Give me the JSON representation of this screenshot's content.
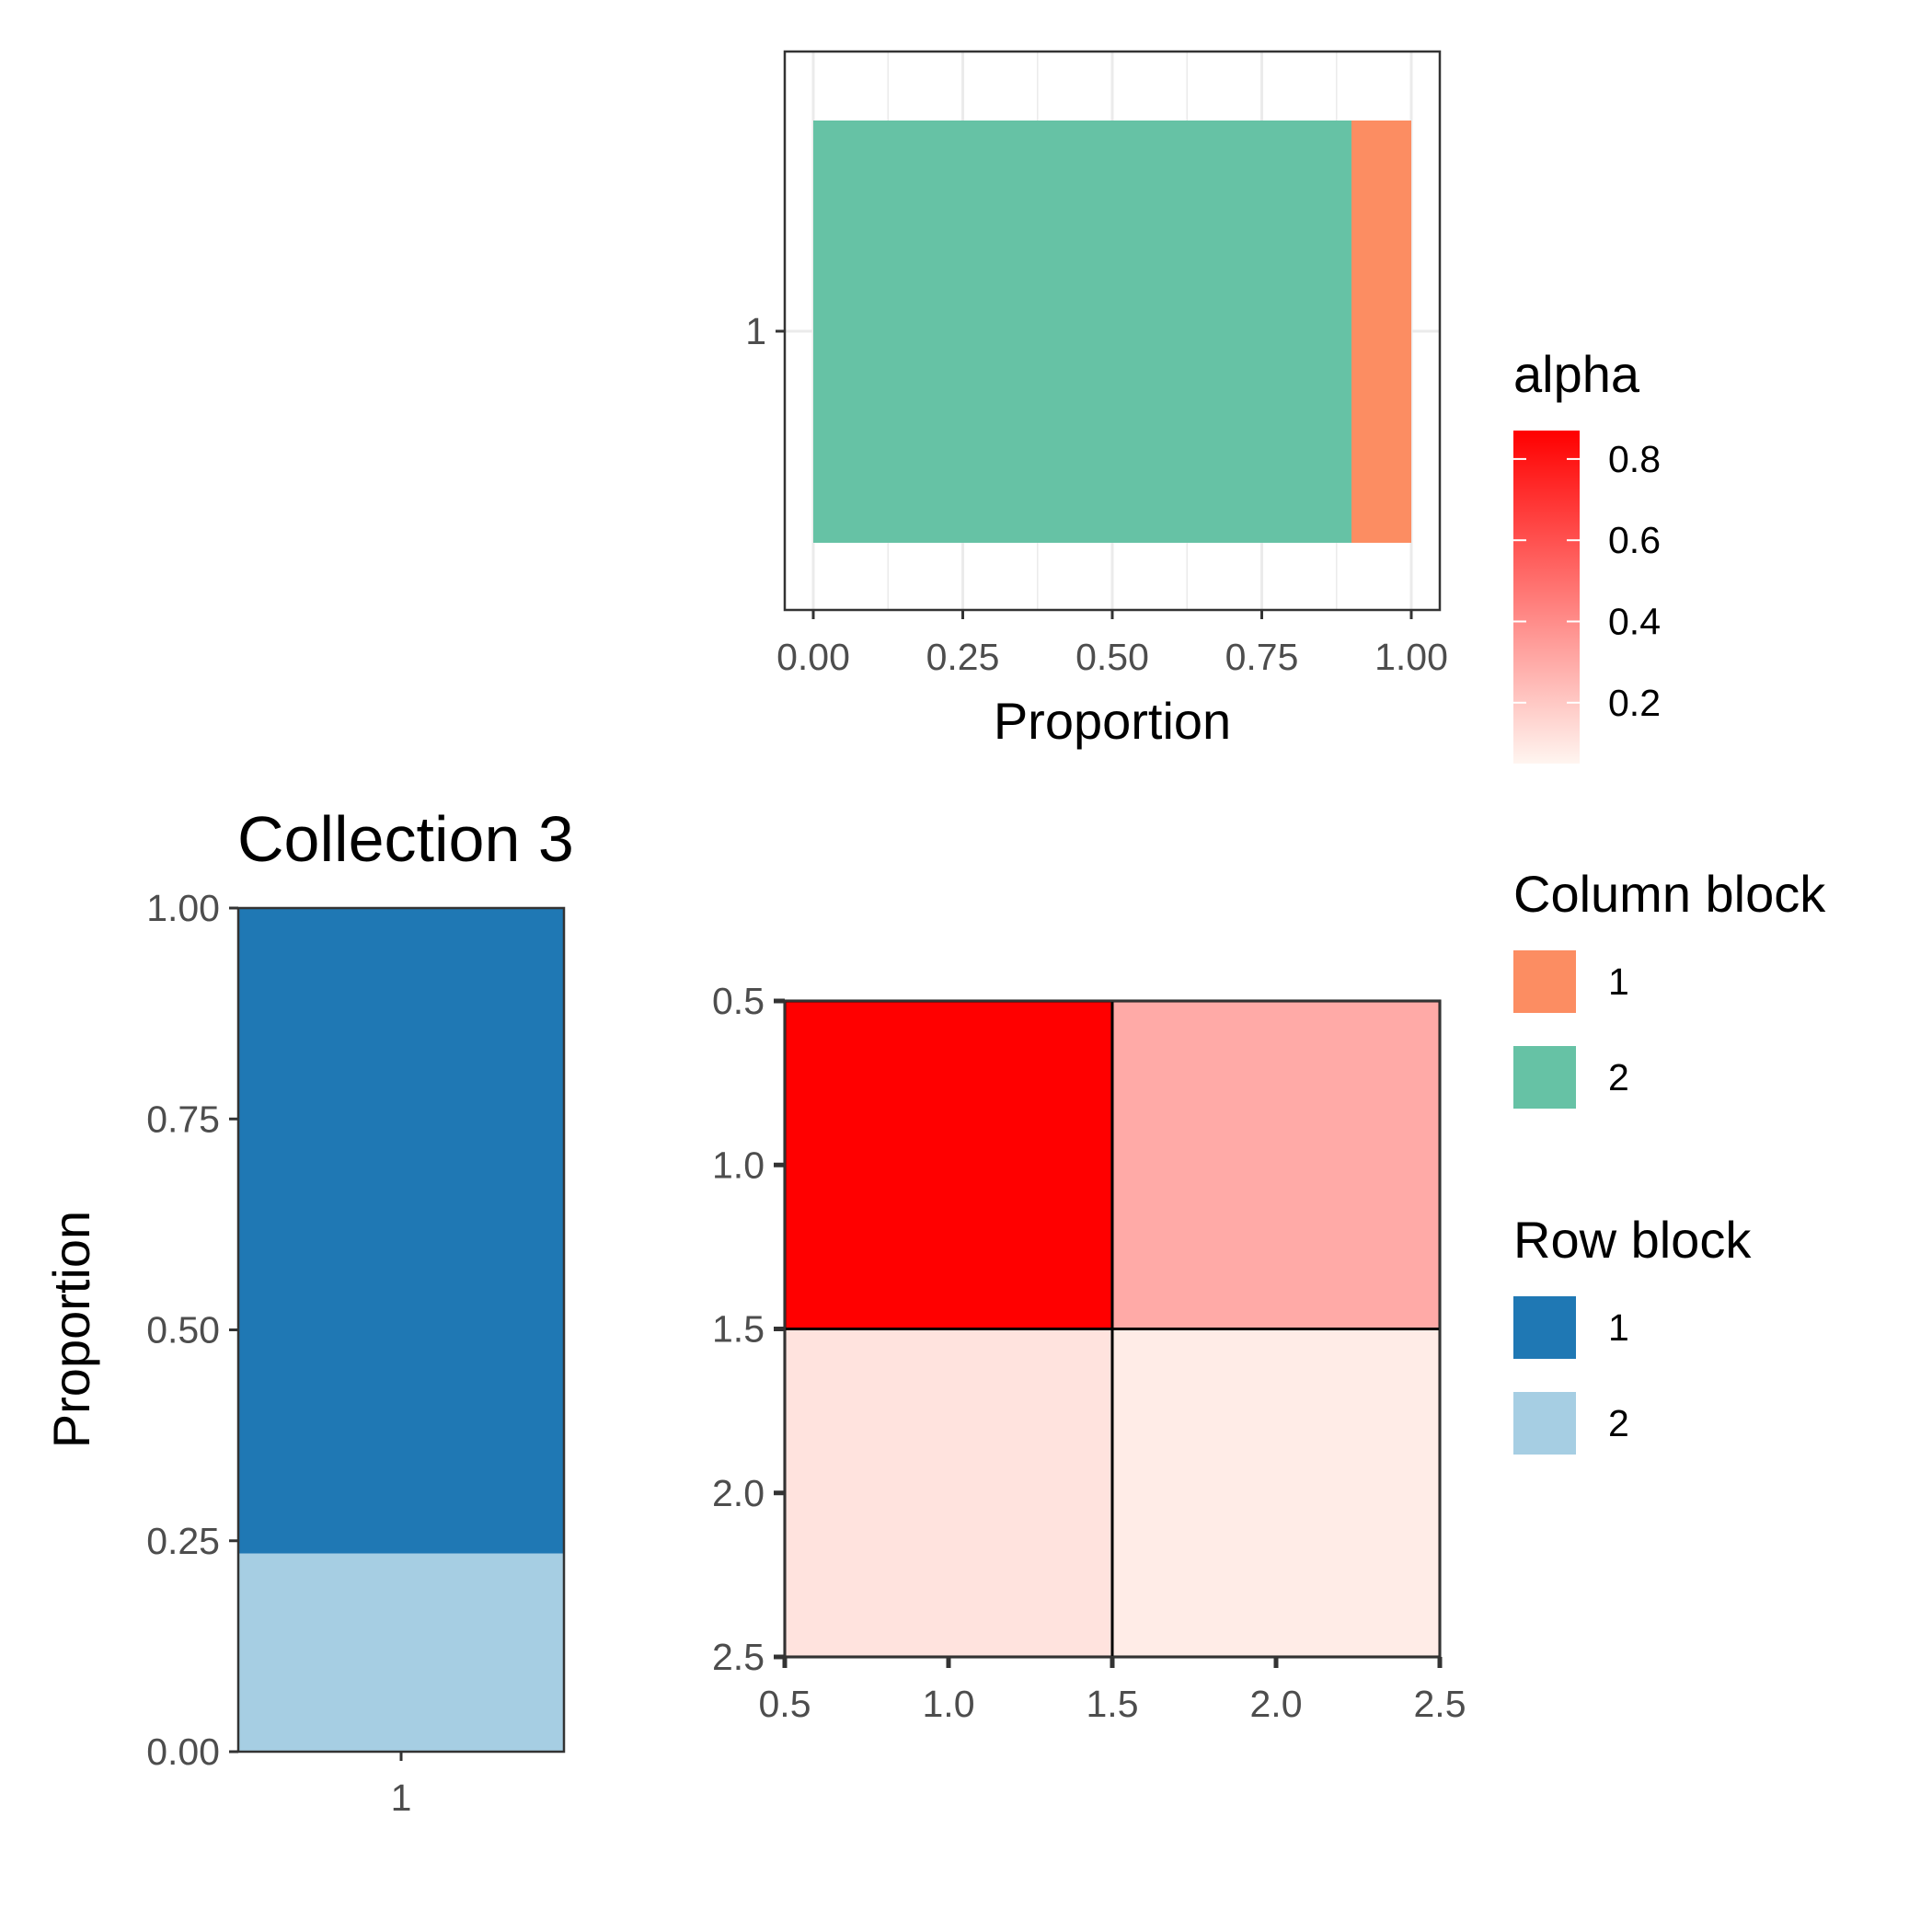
{
  "colors": {
    "column_block_1": "#FC8D62",
    "column_block_2": "#66C2A5",
    "row_block_1": "#1F78B4",
    "row_block_2": "#A6CEE3",
    "alpha_low": "#FFF5F0",
    "alpha_high": "#FF0000"
  },
  "chart_data": [
    {
      "type": "bar",
      "orientation": "horizontal",
      "stacked": true,
      "title": "",
      "xlabel": "Proportion",
      "ylabel": "",
      "categories": [
        "1"
      ],
      "series": [
        {
          "name": "2",
          "values": [
            0.9
          ]
        },
        {
          "name": "1",
          "values": [
            0.1
          ]
        }
      ],
      "xlim": [
        0,
        1
      ],
      "xticks": [
        "0.00",
        "0.25",
        "0.50",
        "0.75",
        "1.00"
      ],
      "yticks": [
        "1"
      ],
      "grid": true
    },
    {
      "type": "bar",
      "stacked": true,
      "title": "Collection  3",
      "xlabel": "",
      "ylabel": "Proportion",
      "categories": [
        "1"
      ],
      "series": [
        {
          "name": "2",
          "values": [
            0.235
          ]
        },
        {
          "name": "1",
          "values": [
            0.765
          ]
        }
      ],
      "ylim": [
        0,
        1
      ],
      "yticks": [
        "0.00",
        "0.25",
        "0.50",
        "0.75",
        "1.00"
      ],
      "xticks": [
        "1"
      ],
      "grid": false
    },
    {
      "type": "heatmap",
      "title": "",
      "xlabel": "",
      "ylabel": "",
      "x": [
        1,
        2
      ],
      "y": [
        1,
        2
      ],
      "values": [
        [
          0.87,
          0.3
        ],
        [
          0.11,
          0.08
        ]
      ],
      "xlim": [
        0.5,
        2.5
      ],
      "ylim": [
        0.5,
        2.5
      ],
      "y_reversed": true,
      "xticks": [
        "0.5",
        "1.0",
        "1.5",
        "2.0",
        "2.5"
      ],
      "yticks": [
        "0.5",
        "1.0",
        "1.5",
        "2.0",
        "2.5"
      ],
      "color_scale": {
        "name": "alpha",
        "min": 0.05,
        "max": 0.87
      }
    }
  ],
  "legends": {
    "alpha": {
      "title": "alpha",
      "ticks": [
        "0.8",
        "0.6",
        "0.4",
        "0.2"
      ],
      "tick_values": [
        0.8,
        0.6,
        0.4,
        0.2
      ]
    },
    "column_block": {
      "title": "Column block",
      "items": [
        {
          "label": "1",
          "color": "#FC8D62"
        },
        {
          "label": "2",
          "color": "#66C2A5"
        }
      ]
    },
    "row_block": {
      "title": "Row block",
      "items": [
        {
          "label": "1",
          "color": "#1F78B4"
        },
        {
          "label": "2",
          "color": "#A6CEE3"
        }
      ]
    }
  }
}
